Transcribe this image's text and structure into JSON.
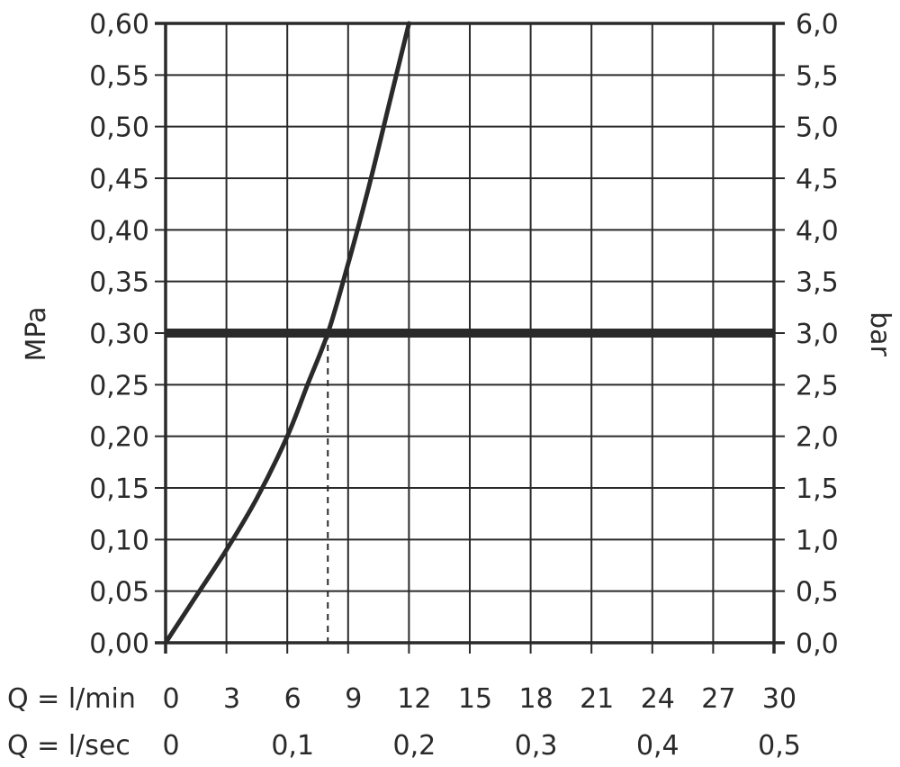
{
  "chart_data": {
    "type": "line",
    "left_axis": {
      "label": "MPa",
      "ylim": [
        0,
        0.6
      ],
      "ticks": [
        "0,00",
        "0,05",
        "0,10",
        "0,15",
        "0,20",
        "0,25",
        "0,30",
        "0,35",
        "0,40",
        "0,45",
        "0,50",
        "0,55",
        "0,60"
      ]
    },
    "right_axis": {
      "label": "bar",
      "ylim": [
        0,
        6
      ],
      "ticks": [
        "0,0",
        "0,5",
        "1,0",
        "1,5",
        "2,0",
        "2,5",
        "3,0",
        "3,5",
        "4,0",
        "4,5",
        "5,0",
        "5,5",
        "6,0"
      ]
    },
    "x_axis_lmin": {
      "label": "Q = l/min",
      "xlim": [
        0,
        30
      ],
      "ticks": [
        "0",
        "3",
        "6",
        "9",
        "12",
        "15",
        "18",
        "21",
        "24",
        "27",
        "30"
      ]
    },
    "x_axis_lsec": {
      "label": "Q = l/sec",
      "xlim": [
        0,
        0.5
      ],
      "ticks": [
        "0",
        "0,1",
        "0,2",
        "0,3",
        "0,4",
        "0,5"
      ]
    },
    "grid": true,
    "series": [
      {
        "x": [
          0,
          1.5,
          3,
          4.5,
          6,
          7,
          8,
          8.9,
          10,
          11,
          12
        ],
        "y": [
          0,
          0.045,
          0.09,
          0.14,
          0.2,
          0.25,
          0.3,
          0.36,
          0.44,
          0.52,
          0.6
        ]
      }
    ],
    "reference_line_y": 0.3,
    "reference_drop_x": 8
  },
  "colors": {
    "line": "#2a2a2a",
    "grid": "#2a2a2a",
    "background": "#ffffff"
  }
}
